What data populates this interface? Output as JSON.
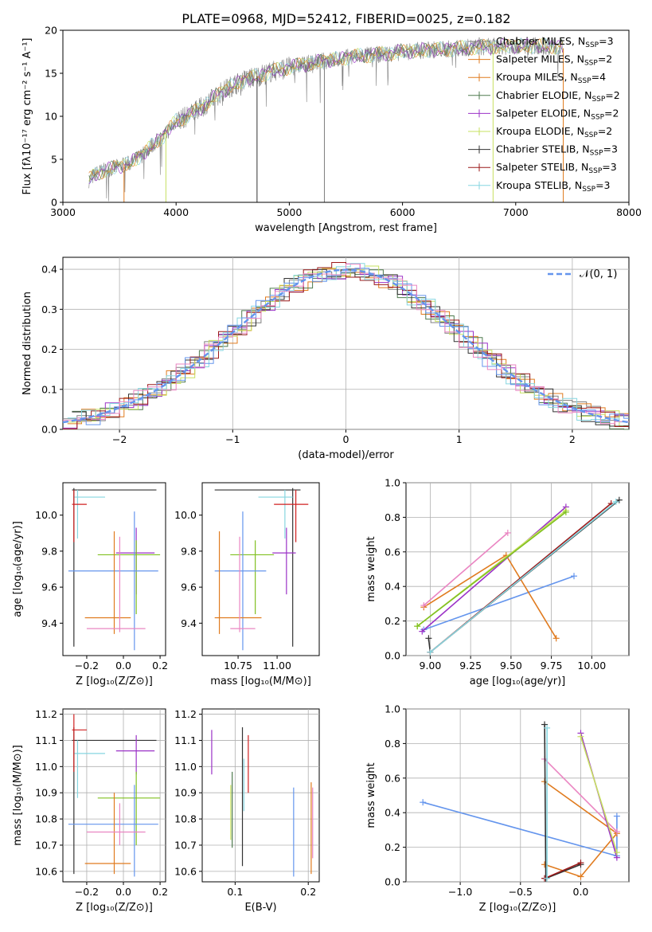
{
  "figure_title": "PLATE=0968, MJD=52412, FIBERID=0025, z=0.182",
  "colors": {
    "gray": "#808080",
    "orange": "#e07b1f",
    "darkgreen": "#4e7a4e",
    "purple": "#9b32c7",
    "yellowgreen": "#c7e060",
    "black": "#333333",
    "darkred": "#9c1a1a",
    "cyan": "#86d6e0",
    "blue": "#6495ed",
    "pink": "#ea85c2",
    "green": "#80c020",
    "red": "#d02020"
  },
  "chart_data": [
    {
      "id": "spectrum",
      "type": "line",
      "xlabel": "wavelength [Angstrom, rest frame]",
      "ylabel": "Flux [fλ10⁻¹⁷ erg cm⁻² s⁻¹ A⁻¹]",
      "xlim": [
        3000,
        8000
      ],
      "ylim": [
        0,
        20
      ],
      "xticks": [
        "3000",
        "4000",
        "5000",
        "6000",
        "7000",
        "8000"
      ],
      "yticks": [
        "0",
        "5",
        "10",
        "15",
        "20"
      ],
      "legend_placement": "right",
      "continuum": [
        [
          3230,
          2.6
        ],
        [
          3300,
          3.4
        ],
        [
          3400,
          3.8
        ],
        [
          3500,
          4.2
        ],
        [
          3600,
          4.6
        ],
        [
          3700,
          5.5
        ],
        [
          3800,
          6.8
        ],
        [
          3900,
          7.8
        ],
        [
          4000,
          9.5
        ],
        [
          4100,
          10.0
        ],
        [
          4200,
          10.8
        ],
        [
          4300,
          11.8
        ],
        [
          4400,
          12.8
        ],
        [
          4500,
          13.6
        ],
        [
          4600,
          14.2
        ],
        [
          4700,
          14.6
        ],
        [
          4800,
          15.0
        ],
        [
          4900,
          15.4
        ],
        [
          5000,
          15.7
        ],
        [
          5200,
          16.2
        ],
        [
          5400,
          16.6
        ],
        [
          5600,
          17.0
        ],
        [
          5800,
          17.2
        ],
        [
          6000,
          17.5
        ],
        [
          6200,
          17.7
        ],
        [
          6400,
          17.8
        ],
        [
          6600,
          18.0
        ],
        [
          6800,
          18.1
        ],
        [
          7000,
          18.2
        ],
        [
          7200,
          18.2
        ],
        [
          7400,
          18.1
        ],
        [
          7420,
          17.9
        ]
      ],
      "legend": [
        {
          "label": "Chabrier MILES, N",
          "sub": "SSP",
          "tail": "=3",
          "color_key": "gray"
        },
        {
          "label": "Salpeter MILES, N",
          "sub": "SSP",
          "tail": "=2",
          "color_key": "orange"
        },
        {
          "label": "Kroupa MILES, N",
          "sub": "SSP",
          "tail": "=4",
          "color_key": "orange"
        },
        {
          "label": "Chabrier ELODIE, N",
          "sub": "SSP",
          "tail": "=2",
          "color_key": "darkgreen"
        },
        {
          "label": "Salpeter ELODIE, N",
          "sub": "SSP",
          "tail": "=2",
          "color_key": "purple"
        },
        {
          "label": "Kroupa ELODIE, N",
          "sub": "SSP",
          "tail": "=2",
          "color_key": "yellowgreen"
        },
        {
          "label": "Chabrier STELIB, N",
          "sub": "SSP",
          "tail": "=3",
          "color_key": "black"
        },
        {
          "label": "Salpeter STELIB, N",
          "sub": "SSP",
          "tail": "=3",
          "color_key": "darkred"
        },
        {
          "label": "Kroupa STELIB, N",
          "sub": "SSP",
          "tail": "=3",
          "color_key": "cyan"
        }
      ]
    },
    {
      "id": "residuals",
      "type": "line",
      "xlabel": "(data-model)/error",
      "ylabel": "Normed distribution",
      "xlim": [
        -2.5,
        2.5
      ],
      "ylim": [
        0,
        0.43
      ],
      "xticks": [
        -2,
        -1,
        0,
        1,
        2
      ],
      "xtick_labels": [
        "−2",
        "−1",
        "0",
        "1",
        "2"
      ],
      "yticks": [
        "0.0",
        "0.1",
        "0.2",
        "0.3",
        "0.4"
      ],
      "grid": true,
      "legend_label": "𝒩(0, 1)",
      "legend_placement": "top-right",
      "gaussian": {
        "mean": 0,
        "sigma": 1
      }
    },
    {
      "id": "age_vs_Z",
      "type": "scatter",
      "xlabel": "Z [log₁₀(Z/Z⊙)]",
      "ylabel": "age  [log₁₀(age/yr)]",
      "xlim": [
        -0.33,
        0.23
      ],
      "ylim": [
        9.22,
        10.18
      ],
      "xticks": [
        "−0.2",
        "0.0",
        "0.2"
      ],
      "xtick_values": [
        -0.2,
        0.0,
        0.2
      ],
      "yticks": [
        "9.4",
        "9.6",
        "9.8",
        "10.0"
      ],
      "ytick_values": [
        9.4,
        9.6,
        9.8,
        10.0
      ],
      "points": [
        {
          "x": -0.27,
          "xl": -0.28,
          "xh": 0.18,
          "y": 10.14,
          "yl": 9.27,
          "yh": 10.15,
          "color_key": "black"
        },
        {
          "x": -0.25,
          "xl": -0.27,
          "xh": -0.1,
          "y": 10.1,
          "yl": 9.87,
          "yh": 10.14,
          "color_key": "cyan"
        },
        {
          "x": -0.27,
          "xl": -0.28,
          "xh": -0.2,
          "y": 10.06,
          "yl": 9.85,
          "yh": 10.14,
          "color_key": "red"
        },
        {
          "x": 0.07,
          "xl": -0.04,
          "xh": 0.17,
          "y": 9.79,
          "yl": 9.56,
          "yh": 9.93,
          "color_key": "purple"
        },
        {
          "x": 0.07,
          "xl": -0.14,
          "xh": 0.2,
          "y": 9.78,
          "yl": 9.45,
          "yh": 9.86,
          "color_key": "green"
        },
        {
          "x": 0.06,
          "xl": -0.3,
          "xh": 0.19,
          "y": 9.69,
          "yl": 9.25,
          "yh": 10.02,
          "color_key": "blue"
        },
        {
          "x": -0.05,
          "xl": -0.21,
          "xh": 0.04,
          "y": 9.43,
          "yl": 9.34,
          "yh": 9.91,
          "color_key": "orange"
        },
        {
          "x": -0.02,
          "xl": -0.2,
          "xh": 0.12,
          "y": 9.37,
          "yl": 9.35,
          "yh": 9.88,
          "color_key": "pink"
        }
      ]
    },
    {
      "id": "age_vs_mass",
      "type": "scatter",
      "xlabel": "mass [log₁₀(M/M⊙)]",
      "ylabel": "",
      "xlim": [
        10.52,
        11.27
      ],
      "ylim": [
        9.22,
        10.18
      ],
      "xticks": [
        "10.75",
        "11.00"
      ],
      "xtick_values": [
        10.75,
        11.0
      ],
      "yticks": [
        "9.4",
        "9.6",
        "9.8",
        "10.0"
      ],
      "ytick_values": [
        9.4,
        9.6,
        9.8,
        10.0
      ],
      "points": [
        {
          "x": 11.1,
          "xl": 10.6,
          "xh": 11.15,
          "y": 10.14,
          "yl": 9.27,
          "yh": 10.15,
          "color_key": "black"
        },
        {
          "x": 11.05,
          "xl": 10.88,
          "xh": 11.1,
          "y": 10.1,
          "yl": 9.87,
          "yh": 10.14,
          "color_key": "cyan"
        },
        {
          "x": 11.12,
          "xl": 10.98,
          "xh": 11.2,
          "y": 10.06,
          "yl": 9.85,
          "yh": 10.14,
          "color_key": "red"
        },
        {
          "x": 11.06,
          "xl": 10.97,
          "xh": 11.12,
          "y": 9.79,
          "yl": 9.56,
          "yh": 9.93,
          "color_key": "purple"
        },
        {
          "x": 10.86,
          "xl": 10.7,
          "xh": 10.98,
          "y": 9.78,
          "yl": 9.45,
          "yh": 9.86,
          "color_key": "green"
        },
        {
          "x": 10.78,
          "xl": 10.6,
          "xh": 10.93,
          "y": 9.69,
          "yl": 9.25,
          "yh": 10.02,
          "color_key": "blue"
        },
        {
          "x": 10.63,
          "xl": 10.6,
          "xh": 10.9,
          "y": 9.43,
          "yl": 9.34,
          "yh": 9.91,
          "color_key": "orange"
        },
        {
          "x": 10.76,
          "xl": 10.7,
          "xh": 10.86,
          "y": 9.37,
          "yl": 9.35,
          "yh": 9.88,
          "color_key": "pink"
        }
      ]
    },
    {
      "id": "massweight_vs_age",
      "type": "line",
      "xlabel": "age  [log₁₀(age/yr)]",
      "ylabel": "mass weight",
      "xlim": [
        8.85,
        10.23
      ],
      "ylim": [
        0,
        1
      ],
      "xticks": [
        "9.00",
        "9.25",
        "9.50",
        "9.75",
        "10.00"
      ],
      "xtick_values": [
        9.0,
        9.25,
        9.5,
        9.75,
        10.0
      ],
      "yticks": [
        "0.0",
        "0.2",
        "0.4",
        "0.6",
        "0.8",
        "1.0"
      ],
      "ytick_values": [
        0,
        0.2,
        0.4,
        0.6,
        0.8,
        1.0
      ],
      "grid": true,
      "series": [
        {
          "color_key": "blue",
          "x": [
            8.96,
            9.89
          ],
          "y": [
            0.15,
            0.46
          ]
        },
        {
          "color_key": "orange",
          "x": [
            8.96,
            9.47,
            9.78
          ],
          "y": [
            0.28,
            0.58,
            0.1
          ]
        },
        {
          "color_key": "pink",
          "x": [
            8.96,
            9.48
          ],
          "y": [
            0.29,
            0.71
          ]
        },
        {
          "color_key": "purple",
          "x": [
            8.95,
            9.84
          ],
          "y": [
            0.14,
            0.86
          ]
        },
        {
          "color_key": "yellowgreen",
          "x": [
            8.92,
            9.84
          ],
          "y": [
            0.17,
            0.84
          ]
        },
        {
          "color_key": "green",
          "x": [
            8.92,
            9.84
          ],
          "y": [
            0.17,
            0.83
          ]
        },
        {
          "color_key": "black",
          "x": [
            8.99,
            9.0,
            10.17
          ],
          "y": [
            0.1,
            0.02,
            0.9
          ]
        },
        {
          "color_key": "darkred",
          "x": [
            9.0,
            10.12
          ],
          "y": [
            0.02,
            0.88
          ]
        },
        {
          "color_key": "cyan",
          "x": [
            9.0,
            10.15
          ],
          "y": [
            0.02,
            0.89
          ]
        }
      ]
    },
    {
      "id": "mass_vs_Z",
      "type": "scatter",
      "xlabel": "Z [log₁₀(Z/Z⊙)]",
      "ylabel": "mass [log₁₀(M/M⊙)]",
      "xlim": [
        -0.33,
        0.23
      ],
      "ylim": [
        10.56,
        11.22
      ],
      "xticks": [
        "−0.2",
        "0.0",
        "0.2"
      ],
      "xtick_values": [
        -0.2,
        0.0,
        0.2
      ],
      "yticks": [
        "10.6",
        "10.7",
        "10.8",
        "10.9",
        "11.0",
        "11.1",
        "11.2"
      ],
      "ytick_values": [
        10.6,
        10.7,
        10.8,
        10.9,
        11.0,
        11.1,
        11.2
      ],
      "points": [
        {
          "x": -0.27,
          "xl": -0.28,
          "xh": 0.18,
          "y": 11.1,
          "yl": 10.59,
          "yh": 11.15,
          "color_key": "black"
        },
        {
          "x": -0.25,
          "xl": -0.27,
          "xh": -0.1,
          "y": 11.05,
          "yl": 10.88,
          "yh": 11.1,
          "color_key": "cyan"
        },
        {
          "x": -0.27,
          "xl": -0.28,
          "xh": -0.2,
          "y": 11.14,
          "yl": 10.98,
          "yh": 11.2,
          "color_key": "red"
        },
        {
          "x": 0.07,
          "xl": -0.04,
          "xh": 0.17,
          "y": 11.06,
          "yl": 10.97,
          "yh": 11.12,
          "color_key": "purple"
        },
        {
          "x": 0.07,
          "xl": -0.14,
          "xh": 0.2,
          "y": 10.88,
          "yl": 10.7,
          "yh": 10.98,
          "color_key": "green"
        },
        {
          "x": 0.06,
          "xl": -0.3,
          "xh": 0.19,
          "y": 10.78,
          "yl": 10.58,
          "yh": 10.93,
          "color_key": "blue"
        },
        {
          "x": -0.05,
          "xl": -0.21,
          "xh": 0.04,
          "y": 10.63,
          "yl": 10.59,
          "yh": 10.9,
          "color_key": "orange"
        },
        {
          "x": -0.02,
          "xl": -0.2,
          "xh": 0.12,
          "y": 10.75,
          "yl": 10.7,
          "yh": 10.86,
          "color_key": "pink"
        }
      ]
    },
    {
      "id": "mass_vs_ebv",
      "type": "scatter",
      "xlabel": "E(B-V)",
      "ylabel": "",
      "xlim": [
        0.055,
        0.215
      ],
      "ylim": [
        10.56,
        11.22
      ],
      "xticks": [
        "0.1",
        "0.2"
      ],
      "xtick_values": [
        0.1,
        0.2
      ],
      "yticks": [
        "10.6",
        "10.7",
        "10.8",
        "10.9",
        "11.0",
        "11.1",
        "11.2"
      ],
      "ytick_values": [
        10.6,
        10.7,
        10.8,
        10.9,
        11.0,
        11.1,
        11.2
      ],
      "points": [
        {
          "x": 0.068,
          "yl": 10.97,
          "yh": 11.14,
          "color_key": "purple"
        },
        {
          "x": 0.094,
          "yl": 10.72,
          "yh": 10.93,
          "color_key": "yellowgreen"
        },
        {
          "x": 0.096,
          "yl": 10.69,
          "yh": 10.98,
          "color_key": "darkgreen"
        },
        {
          "x": 0.11,
          "yl": 10.62,
          "yh": 11.15,
          "color_key": "black"
        },
        {
          "x": 0.112,
          "yl": 10.83,
          "yh": 11.03,
          "color_key": "cyan"
        },
        {
          "x": 0.118,
          "yl": 10.9,
          "yh": 11.12,
          "color_key": "red"
        },
        {
          "x": 0.18,
          "yl": 10.58,
          "yh": 10.92,
          "color_key": "blue"
        },
        {
          "x": 0.204,
          "yl": 10.59,
          "yh": 10.94,
          "color_key": "orange"
        },
        {
          "x": 0.206,
          "yl": 10.65,
          "yh": 10.92,
          "color_key": "pink"
        }
      ]
    },
    {
      "id": "massweight_vs_Z",
      "type": "line",
      "xlabel": "Z [log₁₀(Z/Z⊙)]",
      "ylabel": "mass weight",
      "xlim": [
        -1.45,
        0.4
      ],
      "ylim": [
        0,
        1
      ],
      "xticks": [
        "−1.0",
        "−0.5",
        "0.0"
      ],
      "xtick_values": [
        -1.0,
        -0.5,
        0.0
      ],
      "yticks": [
        "0.0",
        "0.2",
        "0.4",
        "0.6",
        "0.8",
        "1.0"
      ],
      "ytick_values": [
        0,
        0.2,
        0.4,
        0.6,
        0.8,
        1.0
      ],
      "grid": true,
      "series": [
        {
          "color_key": "blue",
          "x": [
            -1.31,
            0.3,
            0.3
          ],
          "y": [
            0.46,
            0.15,
            0.38
          ]
        },
        {
          "color_key": "orange",
          "x": [
            -0.3,
            0.0,
            0.3,
            -0.3
          ],
          "y": [
            0.1,
            0.03,
            0.28,
            0.58
          ]
        },
        {
          "color_key": "pink",
          "x": [
            -0.3,
            0.3
          ],
          "y": [
            0.71,
            0.29
          ]
        },
        {
          "color_key": "purple",
          "x": [
            0.0,
            0.3
          ],
          "y": [
            0.86,
            0.14
          ]
        },
        {
          "color_key": "yellowgreen",
          "x": [
            0.0,
            0.3
          ],
          "y": [
            0.84,
            0.17
          ]
        },
        {
          "color_key": "black",
          "x": [
            -0.3,
            -0.29,
            0.0
          ],
          "y": [
            0.91,
            0.02,
            0.1
          ]
        },
        {
          "color_key": "darkred",
          "x": [
            -0.3,
            0.0
          ],
          "y": [
            0.02,
            0.11
          ]
        },
        {
          "color_key": "cyan",
          "x": [
            -0.28,
            -0.28
          ],
          "y": [
            0.02,
            0.89
          ]
        }
      ]
    }
  ]
}
